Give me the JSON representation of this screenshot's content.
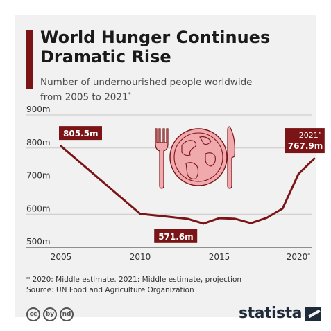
{
  "colors": {
    "accent": "#7b1416",
    "plate": "#f0a9ac",
    "text": "#1a1a1a",
    "grid": "#c8c8c8"
  },
  "header": {
    "title_line1": "World Hunger Continues",
    "title_line2": "Dramatic Rise",
    "subtitle_line1": "Number of undernourished people worldwide",
    "subtitle_line2": "from 2005 to 2021",
    "subtitle_mark": "*"
  },
  "chart_data": {
    "type": "line",
    "x": [
      2005,
      2010,
      2011,
      2012,
      2013,
      2014,
      2015,
      2016,
      2017,
      2018,
      2019,
      2020,
      2021
    ],
    "values": [
      805.5,
      601,
      596,
      591,
      586,
      571.6,
      588,
      586,
      573,
      589,
      617,
      721,
      767.9
    ],
    "ylim": [
      500,
      900
    ],
    "y_ticks": [
      "500m",
      "600m",
      "700m",
      "800m",
      "900m"
    ],
    "x_ticks": [
      "2005",
      "2010",
      "2015",
      "2020*"
    ],
    "grid": true,
    "annotations": [
      {
        "x": 2005,
        "text": "805.5m"
      },
      {
        "x": 2014,
        "text": "571.6m"
      },
      {
        "x": 2021,
        "line1": "2021*",
        "line2": "767.9m"
      }
    ],
    "icon": "plate-fork-knife-icon"
  },
  "footer": {
    "note": "* 2020: Middle estimate. 2021: Middle estimate, projection",
    "source": "Source: UN Food and Agriculture Organization",
    "license_icons": [
      "cc",
      "by",
      "nd"
    ],
    "brand": "statista"
  }
}
